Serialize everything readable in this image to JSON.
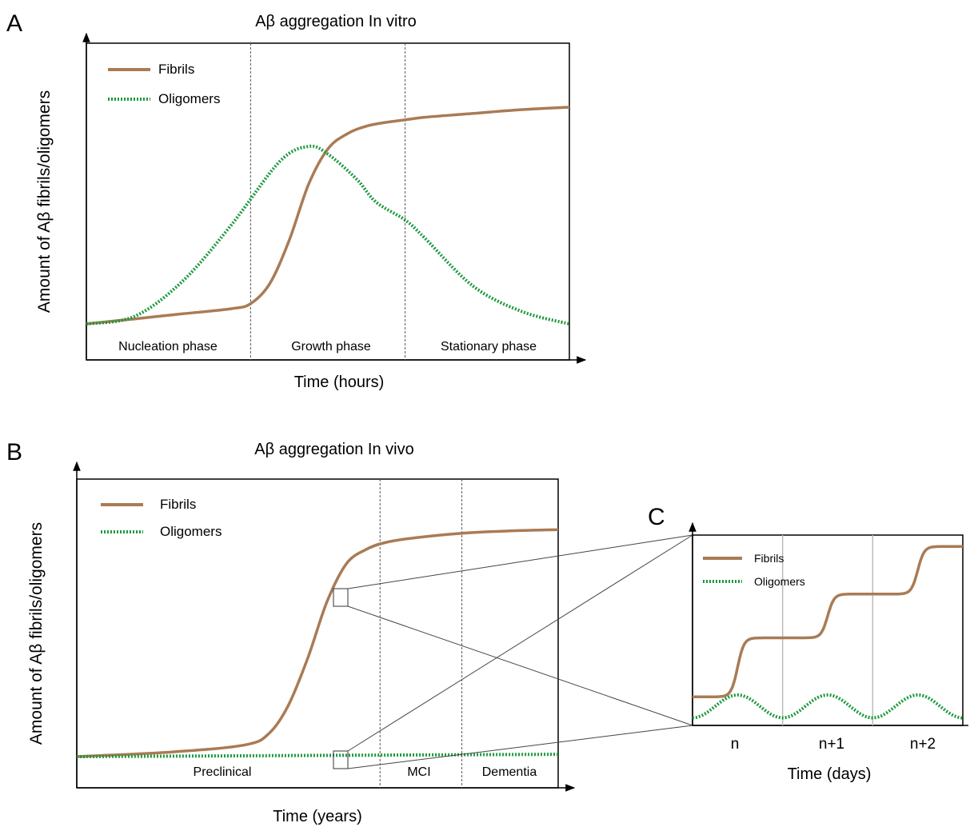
{
  "colors": {
    "fibrils": "#a97b55",
    "oligomers": "#1e9a3e",
    "axis": "#000000",
    "divider": "#555555",
    "divider_c": "#bbbbbb"
  },
  "chart_data": [
    {
      "panel": "A",
      "type": "line",
      "title": "Aβ aggregation In vitro",
      "xlabel": "Time (hours)",
      "ylabel": "Amount of Aβ fibrils/oligomers",
      "xlim": [
        0,
        100
      ],
      "ylim": [
        0,
        100
      ],
      "grid": false,
      "legend_position": "top-left",
      "legend": [
        "Fibrils",
        "Oligomers"
      ],
      "phases": [
        "Nucleation phase",
        "Growth phase",
        "Stationary phase"
      ],
      "phase_boundaries": [
        34,
        66
      ],
      "series": [
        {
          "name": "Fibrils",
          "style": "solid",
          "x": [
            0,
            10,
            20,
            30,
            34,
            38,
            42,
            46,
            50,
            54,
            58,
            62,
            66,
            70,
            80,
            90,
            100
          ],
          "y": [
            0,
            2,
            4,
            6,
            8,
            16,
            33,
            55,
            69,
            75,
            78,
            79.5,
            80.5,
            81.5,
            83,
            84.5,
            85.5
          ]
        },
        {
          "name": "Oligomers",
          "style": "dotted",
          "x": [
            0,
            10,
            20,
            30,
            40,
            46,
            50,
            56,
            60,
            66,
            70,
            80,
            90,
            100
          ],
          "y": [
            0,
            3,
            17,
            39,
            64,
            70,
            67,
            57,
            48,
            41,
            34,
            15,
            5,
            0
          ]
        }
      ]
    },
    {
      "panel": "B",
      "type": "line",
      "title": "Aβ aggregation In vivo",
      "xlabel": "Time (years)",
      "ylabel": "Amount of Aβ fibrils/oligomers",
      "xlim": [
        0,
        100
      ],
      "ylim": [
        0,
        100
      ],
      "grid": false,
      "legend_position": "top-left",
      "legend": [
        "Fibrils",
        "Oligomers"
      ],
      "phases": [
        "Preclinical",
        "MCI",
        "Dementia"
      ],
      "phase_boundaries": [
        63,
        80
      ],
      "series": [
        {
          "name": "Fibrils",
          "style": "solid",
          "x": [
            0,
            20,
            35,
            40,
            44,
            48,
            52,
            56,
            60,
            64,
            70,
            80,
            90,
            100
          ],
          "y": [
            0,
            2,
            5,
            10,
            22,
            42,
            66,
            82,
            88,
            91,
            93,
            95,
            96,
            96.5
          ]
        },
        {
          "name": "Oligomers",
          "style": "dotted",
          "x": [
            0,
            100
          ],
          "y": [
            0,
            1
          ]
        }
      ]
    },
    {
      "panel": "C",
      "type": "line",
      "xlabel": "Time (days)",
      "xlim": [
        0,
        3
      ],
      "ylim": [
        0,
        100
      ],
      "grid": false,
      "legend_position": "top-left",
      "legend": [
        "Fibrils",
        "Oligomers"
      ],
      "x_ticks": [
        "n",
        "n+1",
        "n+2"
      ],
      "day_boundaries": [
        1,
        2
      ],
      "series": [
        {
          "name": "Fibrils",
          "style": "solid",
          "step_levels": [
            15,
            46,
            69,
            94
          ]
        },
        {
          "name": "Oligomers",
          "style": "dotted",
          "peaks": [
            0.5,
            1.5,
            2.5
          ],
          "baseline": 4,
          "peak": 16
        }
      ]
    }
  ]
}
